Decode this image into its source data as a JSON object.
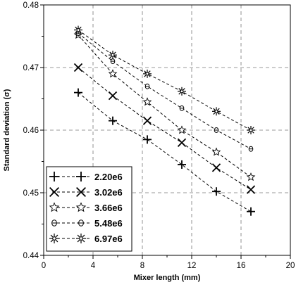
{
  "chart_data": {
    "type": "line",
    "title": "",
    "xlabel": "Mixer length (mm)",
    "ylabel": "Standard deviation (σ)",
    "xlim": [
      0,
      20
    ],
    "ylim": [
      0.44,
      0.48
    ],
    "x_ticks": [
      0,
      4,
      8,
      12,
      16,
      20
    ],
    "y_ticks": [
      0.44,
      0.45,
      0.46,
      0.47,
      0.48
    ],
    "x_tick_labels": [
      "0",
      "4",
      "8",
      "12",
      "16",
      "20"
    ],
    "y_tick_labels": [
      "0.44",
      "0.45",
      "0.46",
      "0.47",
      "0.48"
    ],
    "grid": true,
    "legend_position": "bottom-left",
    "series": [
      {
        "name": "2.20e6",
        "marker": "plus",
        "x": [
          2.8,
          5.6,
          8.4,
          11.2,
          14.0,
          16.8
        ],
        "y": [
          0.466,
          0.4615,
          0.4585,
          0.4545,
          0.4502,
          0.447
        ]
      },
      {
        "name": "3.02e6",
        "marker": "cross",
        "x": [
          2.8,
          5.6,
          8.4,
          11.2,
          14.0,
          16.8
        ],
        "y": [
          0.47,
          0.4655,
          0.4615,
          0.458,
          0.454,
          0.4505
        ]
      },
      {
        "name": "3.66e6",
        "marker": "star",
        "x": [
          2.8,
          5.6,
          8.4,
          11.2,
          14.0,
          16.8
        ],
        "y": [
          0.4752,
          0.469,
          0.4645,
          0.46,
          0.4565,
          0.4525
        ]
      },
      {
        "name": "5.48e6",
        "marker": "circle",
        "x": [
          2.8,
          5.6,
          8.4,
          11.2,
          14.0,
          16.8
        ],
        "y": [
          0.4755,
          0.471,
          0.467,
          0.4635,
          0.46,
          0.457
        ]
      },
      {
        "name": "6.97e6",
        "marker": "asterisk",
        "x": [
          2.8,
          5.6,
          8.4,
          11.2,
          14.0,
          16.8
        ],
        "y": [
          0.476,
          0.472,
          0.469,
          0.4662,
          0.463,
          0.46
        ]
      }
    ]
  }
}
